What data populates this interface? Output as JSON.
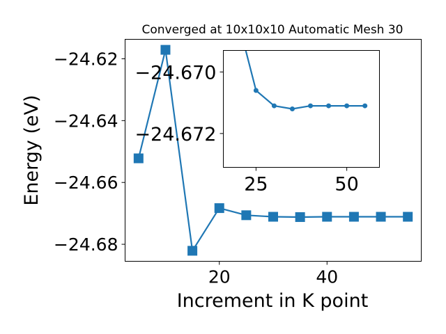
{
  "chart_data": [
    {
      "type": "line",
      "title": "Converged at 10x10x10 Automatic Mesh 30",
      "xlabel": "Increment in K point",
      "ylabel": "Energy (eV)",
      "xlim": [
        2.5,
        57.5
      ],
      "ylim": [
        -24.6855,
        -24.6137
      ],
      "x_ticks": [
        20,
        40
      ],
      "y_ticks": [
        -24.62,
        -24.64,
        -24.66,
        -24.68
      ],
      "x_tick_labels": [
        "20",
        "40"
      ],
      "y_tick_labels": [
        "−24.62",
        "−24.64",
        "−24.66",
        "−24.68"
      ],
      "marker": "square",
      "color": "#1f77b4",
      "series": [
        {
          "x": [
            5,
            10,
            15,
            20,
            25,
            30,
            35,
            40,
            45,
            50,
            55
          ],
          "y": [
            -24.6522,
            -24.6171,
            -24.6821,
            -24.6683,
            -24.6706,
            -24.6711,
            -24.6712,
            -24.6711,
            -24.6711,
            -24.6711,
            -24.6711
          ]
        }
      ]
    },
    {
      "type": "line",
      "title": "",
      "xlim": [
        16,
        59
      ],
      "ylim": [
        -24.6731,
        -24.6693
      ],
      "x_ticks": [
        25,
        50
      ],
      "y_ticks": [
        -24.672,
        -24.67
      ],
      "x_tick_labels": [
        "25",
        "50"
      ],
      "y_tick_labels": [
        "−24.672",
        "−24.670"
      ],
      "marker": "circle",
      "color": "#1f77b4",
      "series": [
        {
          "x": [
            20,
            25,
            30,
            35,
            40,
            45,
            50,
            55
          ],
          "y": [
            -24.6683,
            -24.6706,
            -24.6711,
            -24.6712,
            -24.6711,
            -24.6711,
            -24.6711,
            -24.6711
          ]
        }
      ]
    }
  ]
}
